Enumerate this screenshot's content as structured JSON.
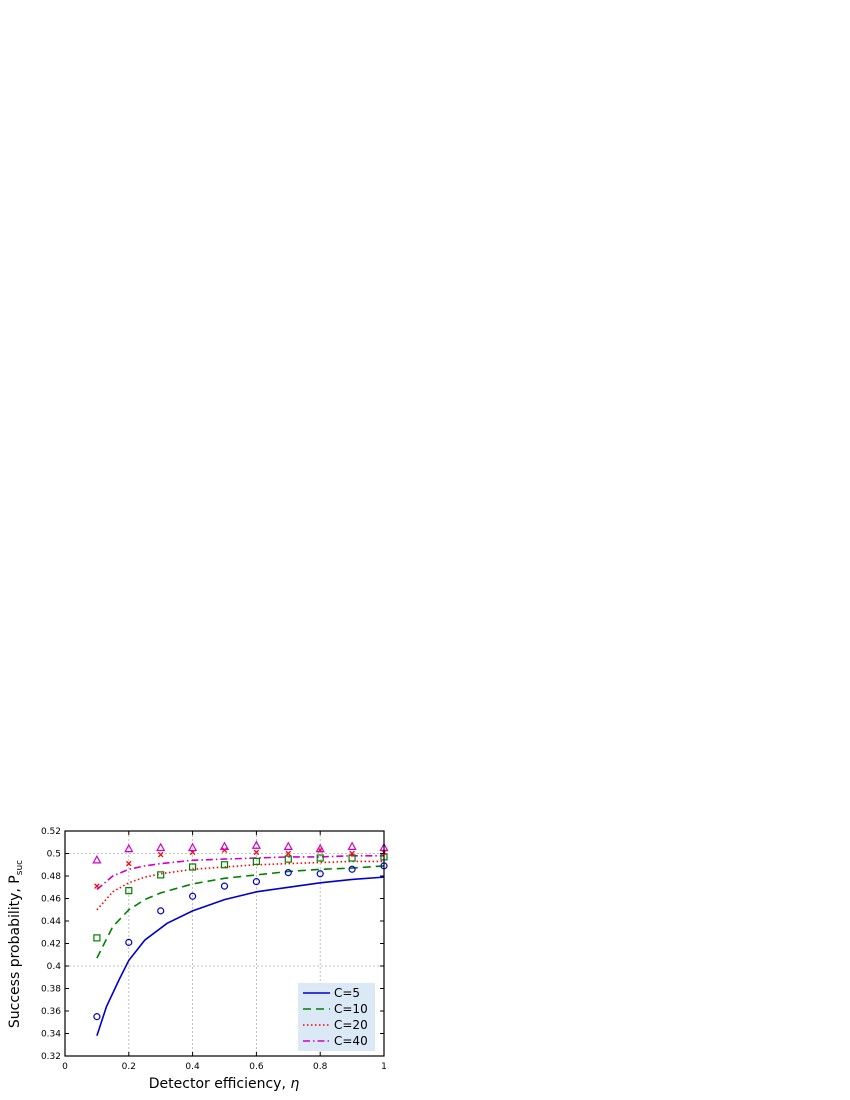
{
  "chart_data": {
    "type": "line",
    "xlabel": "Detector efficiency, ",
    "xlabel_symbol": "η",
    "ylabel": "Success probability, P",
    "ylabel_sub": "suc",
    "xlim": [
      0,
      1
    ],
    "ylim": [
      0.32,
      0.52
    ],
    "x_ticks": [
      0,
      0.2,
      0.4,
      0.6,
      0.8,
      1
    ],
    "x_tick_labels": [
      "0",
      "0.2",
      "0.4",
      "0.6",
      "0.8",
      "1"
    ],
    "y_ticks": [
      0.32,
      0.34,
      0.36,
      0.38,
      0.4,
      0.42,
      0.44,
      0.46,
      0.48,
      0.5,
      0.52
    ],
    "y_tick_labels": [
      "0.32",
      "0.34",
      "0.36",
      "0.38",
      "0.4",
      "0.42",
      "0.44",
      "0.46",
      "0.48",
      "0.5",
      "0.52"
    ],
    "grid_x": [
      0.2,
      0.4,
      0.6,
      0.8
    ],
    "grid_y": [
      0.4,
      0.5
    ],
    "legend_position": "bottom-right",
    "series": [
      {
        "name": "C=5",
        "color": "#0000cc",
        "dash": "solid",
        "x": [
          0.1,
          0.13,
          0.17,
          0.2,
          0.25,
          0.32,
          0.4,
          0.5,
          0.6,
          0.7,
          0.8,
          0.9,
          1.0
        ],
        "y": [
          0.338,
          0.364,
          0.388,
          0.405,
          0.423,
          0.438,
          0.449,
          0.459,
          0.466,
          0.47,
          0.474,
          0.477,
          0.479
        ]
      },
      {
        "name": "C=10",
        "color": "#008000",
        "dash": "dashed",
        "x": [
          0.1,
          0.15,
          0.2,
          0.25,
          0.3,
          0.4,
          0.5,
          0.6,
          0.7,
          0.8,
          0.9,
          1.0
        ],
        "y": [
          0.407,
          0.435,
          0.45,
          0.459,
          0.465,
          0.473,
          0.478,
          0.481,
          0.484,
          0.486,
          0.487,
          0.489
        ]
      },
      {
        "name": "C=20",
        "color": "#ff0000",
        "dash": "dotted",
        "x": [
          0.1,
          0.15,
          0.2,
          0.25,
          0.3,
          0.4,
          0.5,
          0.6,
          0.7,
          0.8,
          0.9,
          1.0
        ],
        "y": [
          0.45,
          0.466,
          0.474,
          0.479,
          0.482,
          0.486,
          0.488,
          0.49,
          0.491,
          0.492,
          0.493,
          0.493
        ]
      },
      {
        "name": "C=40",
        "color": "#cc00cc",
        "dash": "dashdot",
        "x": [
          0.1,
          0.15,
          0.2,
          0.25,
          0.3,
          0.4,
          0.5,
          0.6,
          0.7,
          0.8,
          0.9,
          1.0
        ],
        "y": [
          0.468,
          0.48,
          0.486,
          0.489,
          0.491,
          0.494,
          0.495,
          0.496,
          0.497,
          0.497,
          0.498,
          0.498
        ]
      }
    ],
    "markers": [
      {
        "symbol": "circle",
        "color": "#0000cc",
        "x": [
          0.1,
          0.2,
          0.3,
          0.4,
          0.5,
          0.6,
          0.7,
          0.8,
          0.9,
          1.0
        ],
        "y": [
          0.355,
          0.421,
          0.449,
          0.462,
          0.471,
          0.475,
          0.483,
          0.482,
          0.486,
          0.489
        ]
      },
      {
        "symbol": "square",
        "color": "#008000",
        "x": [
          0.1,
          0.2,
          0.3,
          0.4,
          0.5,
          0.6,
          0.7,
          0.8,
          0.9,
          1.0
        ],
        "y": [
          0.425,
          0.467,
          0.481,
          0.488,
          0.49,
          0.493,
          0.495,
          0.496,
          0.496,
          0.497
        ]
      },
      {
        "symbol": "x",
        "color": "#ff0000",
        "x": [
          0.1,
          0.2,
          0.3,
          0.4,
          0.5,
          0.6,
          0.7,
          0.8,
          0.9,
          1.0
        ],
        "y": [
          0.471,
          0.491,
          0.499,
          0.501,
          0.503,
          0.501,
          0.5,
          0.503,
          0.5,
          0.501
        ]
      },
      {
        "symbol": "triangle",
        "color": "#cc00cc",
        "x": [
          0.1,
          0.2,
          0.3,
          0.4,
          0.5,
          0.6,
          0.7,
          0.8,
          0.9,
          1.0
        ],
        "y": [
          0.494,
          0.504,
          0.505,
          0.505,
          0.506,
          0.507,
          0.506,
          0.504,
          0.506,
          0.505
        ]
      }
    ]
  }
}
